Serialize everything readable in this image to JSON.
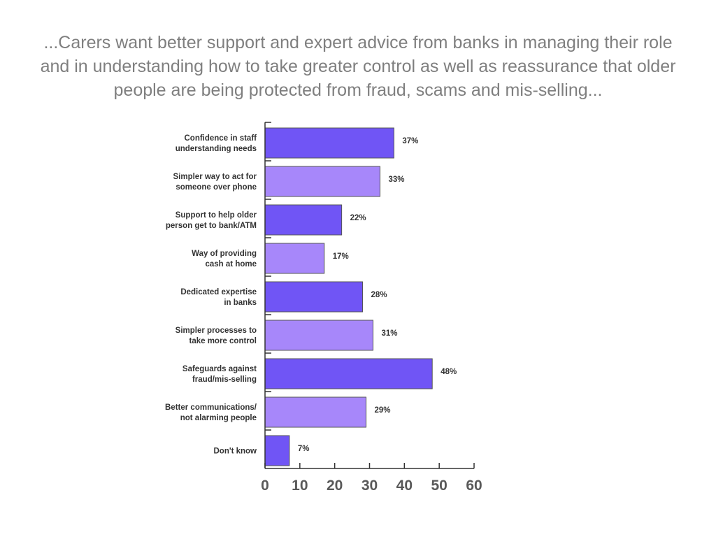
{
  "headline": "...Carers want better support and expert advice from banks in managing their role and in understanding how to take greater control as well as reassurance that older people are being protected from fraud, scams and mis-selling...",
  "chart_data": {
    "type": "bar",
    "orientation": "horizontal",
    "categories": [
      [
        "Confidence in staff",
        "understanding needs"
      ],
      [
        "Simpler way to act for",
        "someone over phone"
      ],
      [
        "Support to help older",
        "person get to bank/ATM"
      ],
      [
        "Way of providing",
        "cash at home"
      ],
      [
        "Dedicated expertise",
        "in banks"
      ],
      [
        "Simpler processes to",
        "take more control"
      ],
      [
        "Safeguards against",
        "fraud/mis-selling"
      ],
      [
        "Better communications/",
        "not alarming people"
      ],
      [
        "Don't know"
      ]
    ],
    "values": [
      37,
      33,
      22,
      17,
      28,
      31,
      48,
      29,
      7
    ],
    "value_labels": [
      "37%",
      "33%",
      "22%",
      "17%",
      "28%",
      "31%",
      "48%",
      "29%",
      "7%"
    ],
    "xlim": [
      0,
      60
    ],
    "xticks": [
      0,
      10,
      20,
      30,
      40,
      50,
      60
    ],
    "grid": false,
    "legend": "none",
    "colors": {
      "dark": "#7055f5",
      "light": "#a787fa",
      "border": "#555555",
      "axis": "#333333"
    }
  }
}
